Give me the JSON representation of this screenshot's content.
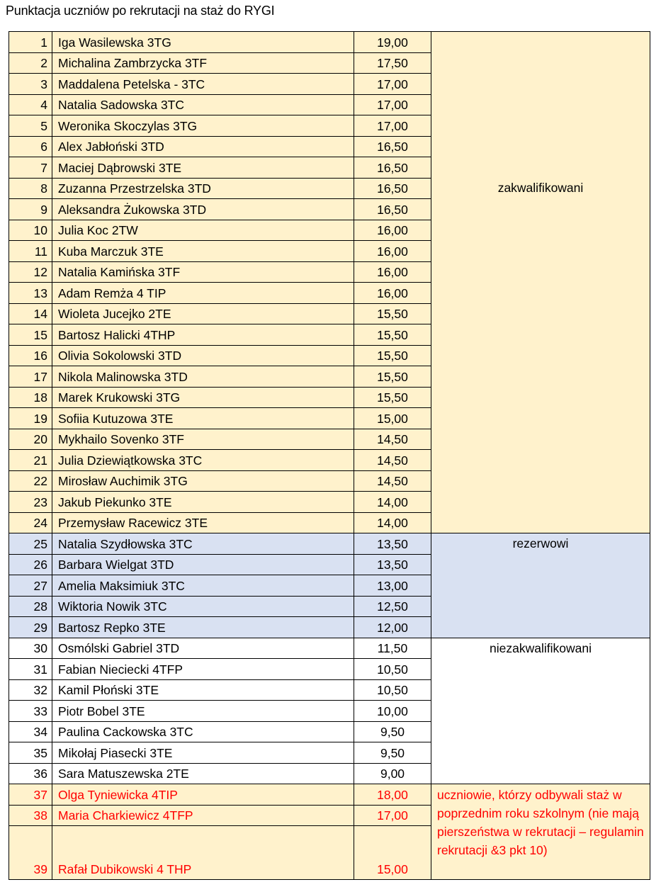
{
  "title": "Punktacja uczniów po rekrutacji na staż do RYGI",
  "colors": {
    "qualified_bg": "#FFF2CC",
    "reserve_bg": "#D9E1F2",
    "not_qualified_bg": "#FFFFFF",
    "previous_text": "#FF0000"
  },
  "groups": [
    {
      "key": "q",
      "status": "zakwalifikowani",
      "rows": [
        {
          "no": "1",
          "name": "Iga Wasilewska 3TG",
          "score": "19,00"
        },
        {
          "no": "2",
          "name": "Michalina Zambrzycka 3TF",
          "score": "17,50"
        },
        {
          "no": "3",
          "name": "Maddalena Petelska -  3TC",
          "score": "17,00"
        },
        {
          "no": "4",
          "name": "Natalia Sadowska 3TC",
          "score": "17,00"
        },
        {
          "no": "5",
          "name": "Weronika Skoczylas 3TG",
          "score": "17,00"
        },
        {
          "no": "6",
          "name": "Alex Jabłoński 3TD",
          "score": "16,50"
        },
        {
          "no": "7",
          "name": "Maciej Dąbrowski 3TE",
          "score": "16,50"
        },
        {
          "no": "8",
          "name": "Zuzanna Przestrzelska 3TD",
          "score": "16,50"
        },
        {
          "no": "9",
          "name": "Aleksandra Żukowska 3TD",
          "score": "16,50"
        },
        {
          "no": "10",
          "name": "Julia Koc 2TW",
          "score": "16,00"
        },
        {
          "no": "11",
          "name": "Kuba Marczuk 3TE",
          "score": "16,00"
        },
        {
          "no": "12",
          "name": "Natalia Kamińska 3TF",
          "score": "16,00"
        },
        {
          "no": "13",
          "name": "Adam Remża 4 TIP",
          "score": "16,00"
        },
        {
          "no": "14",
          "name": "Wioleta Jucejko 2TE",
          "score": "15,50"
        },
        {
          "no": "15",
          "name": "Bartosz Halicki 4THP",
          "score": "15,50"
        },
        {
          "no": "16",
          "name": "Olivia Sokolowski 3TD",
          "score": "15,50"
        },
        {
          "no": "17",
          "name": "Nikola Malinowska 3TD",
          "score": "15,50"
        },
        {
          "no": "18",
          "name": "Marek Krukowski 3TG",
          "score": "15,50"
        },
        {
          "no": "19",
          "name": "Sofiia Kutuzowa 3TE",
          "score": "15,00"
        },
        {
          "no": "20",
          "name": "Mykhailo Sovenko  3TF",
          "score": "14,50"
        },
        {
          "no": "21",
          "name": "Julia Dziewiątkowska 3TC",
          "score": "14,50"
        },
        {
          "no": "22",
          "name": "Mirosław Auchimik 3TG",
          "score": "14,50"
        },
        {
          "no": "23",
          "name": "Jakub Piekunko 3TE",
          "score": "14,00"
        },
        {
          "no": "24",
          "name": "Przemysław Racewicz 3TE",
          "score": "14,00"
        }
      ]
    },
    {
      "key": "r",
      "status": "rezerwowi",
      "rows": [
        {
          "no": "25",
          "name": "Natalia Szydłowska 3TC",
          "score": "13,50"
        },
        {
          "no": "26",
          "name": "Barbara Wielgat 3TD",
          "score": "13,50"
        },
        {
          "no": "27",
          "name": "Amelia Maksimiuk 3TC",
          "score": "13,00"
        },
        {
          "no": "28",
          "name": "Wiktoria Nowik  3TC",
          "score": "12,50"
        },
        {
          "no": "29",
          "name": "Bartosz Repko 3TE",
          "score": "12,00"
        }
      ]
    },
    {
      "key": "n",
      "status": "niezakwalifikowani",
      "rows": [
        {
          "no": "30",
          "name": "Osmólski Gabriel 3TD",
          "score": "11,50"
        },
        {
          "no": "31",
          "name": "Fabian Nieciecki 4TFP",
          "score": "10,50"
        },
        {
          "no": "32",
          "name": "Kamil Płoński 3TE",
          "score": "10,50"
        },
        {
          "no": "33",
          "name": "Piotr Bobel 3TE",
          "score": "10,00"
        },
        {
          "no": "34",
          "name": "Paulina Cackowska 3TC",
          "score": "9,50"
        },
        {
          "no": "35",
          "name": "Mikołaj Piasecki 3TE",
          "score": "9,50"
        },
        {
          "no": "36",
          "name": "Sara Matuszewska 2TE",
          "score": "9,00"
        }
      ]
    },
    {
      "key": "p",
      "status": "uczniowie, którzy odbywali staż w poprzednim roku szkolnym (nie mają pierszeństwa w rekrutacji – regulamin rekrutacji &3 pkt 10)",
      "rows": [
        {
          "no": "37",
          "name": "Olga Tyniewicka 4TIP",
          "score": "18,00"
        },
        {
          "no": "38",
          "name": "Maria Charkiewicz 4TFP",
          "score": "17,00"
        },
        {
          "no": "39",
          "name": "Rafał Dubikowski 4 THP",
          "score": "15,00"
        }
      ]
    }
  ]
}
